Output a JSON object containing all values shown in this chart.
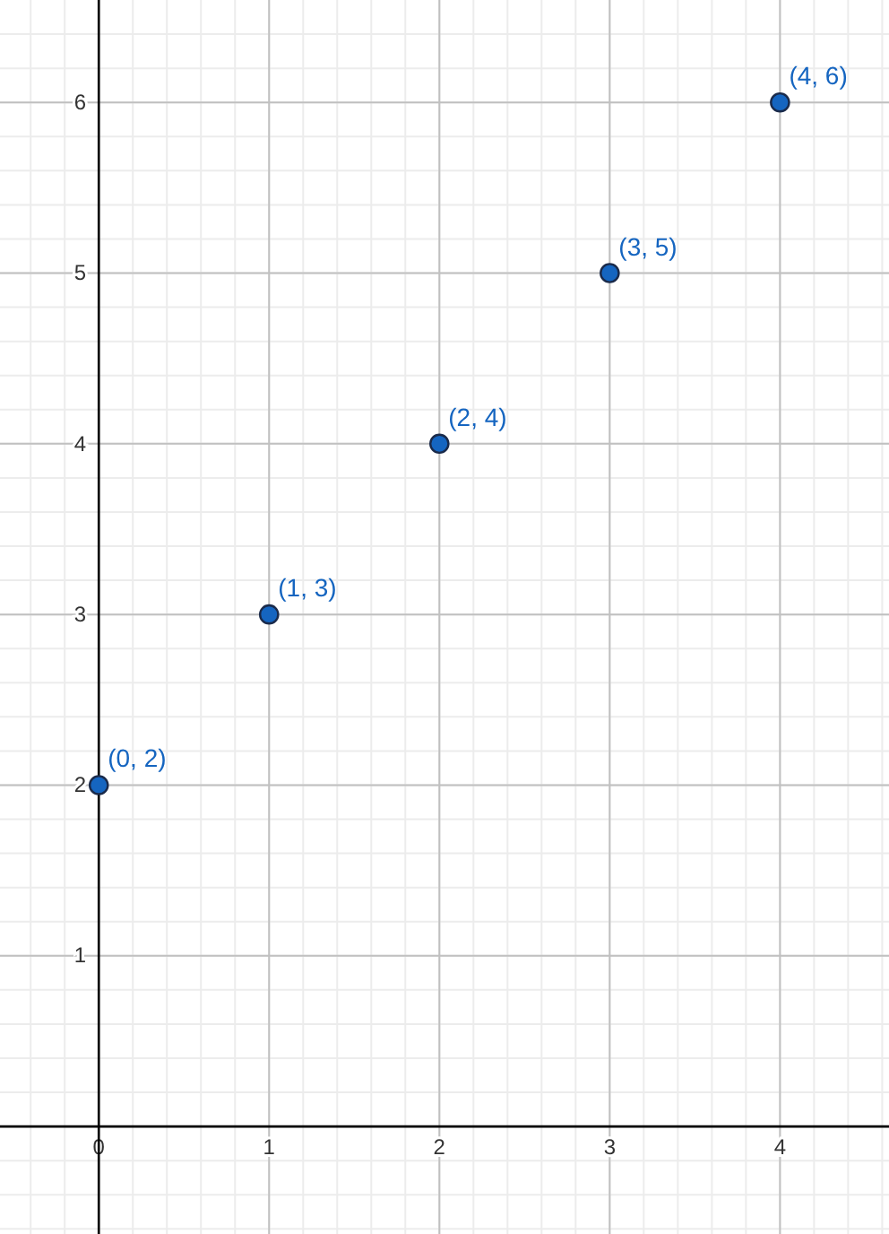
{
  "chart_data": {
    "type": "scatter",
    "x": [
      0,
      1,
      2,
      3,
      4
    ],
    "series": [
      {
        "color": "#1565c0",
        "values": [
          2,
          3,
          4,
          5,
          6
        ],
        "value_labels": [
          "(0, 2)",
          "(1, 3)",
          "(2, 4)",
          "(3, 5)",
          "(4, 6)"
        ]
      }
    ],
    "xlim": [
      -0.58,
      4.64
    ],
    "ylim": [
      -0.63,
      6.6
    ],
    "xticks": [
      0,
      1,
      2,
      3,
      4
    ],
    "yticks": [
      {
        "value": 0,
        "label": null
      },
      1,
      2,
      3,
      4,
      5,
      6
    ],
    "grid": true,
    "marker": "circle"
  }
}
